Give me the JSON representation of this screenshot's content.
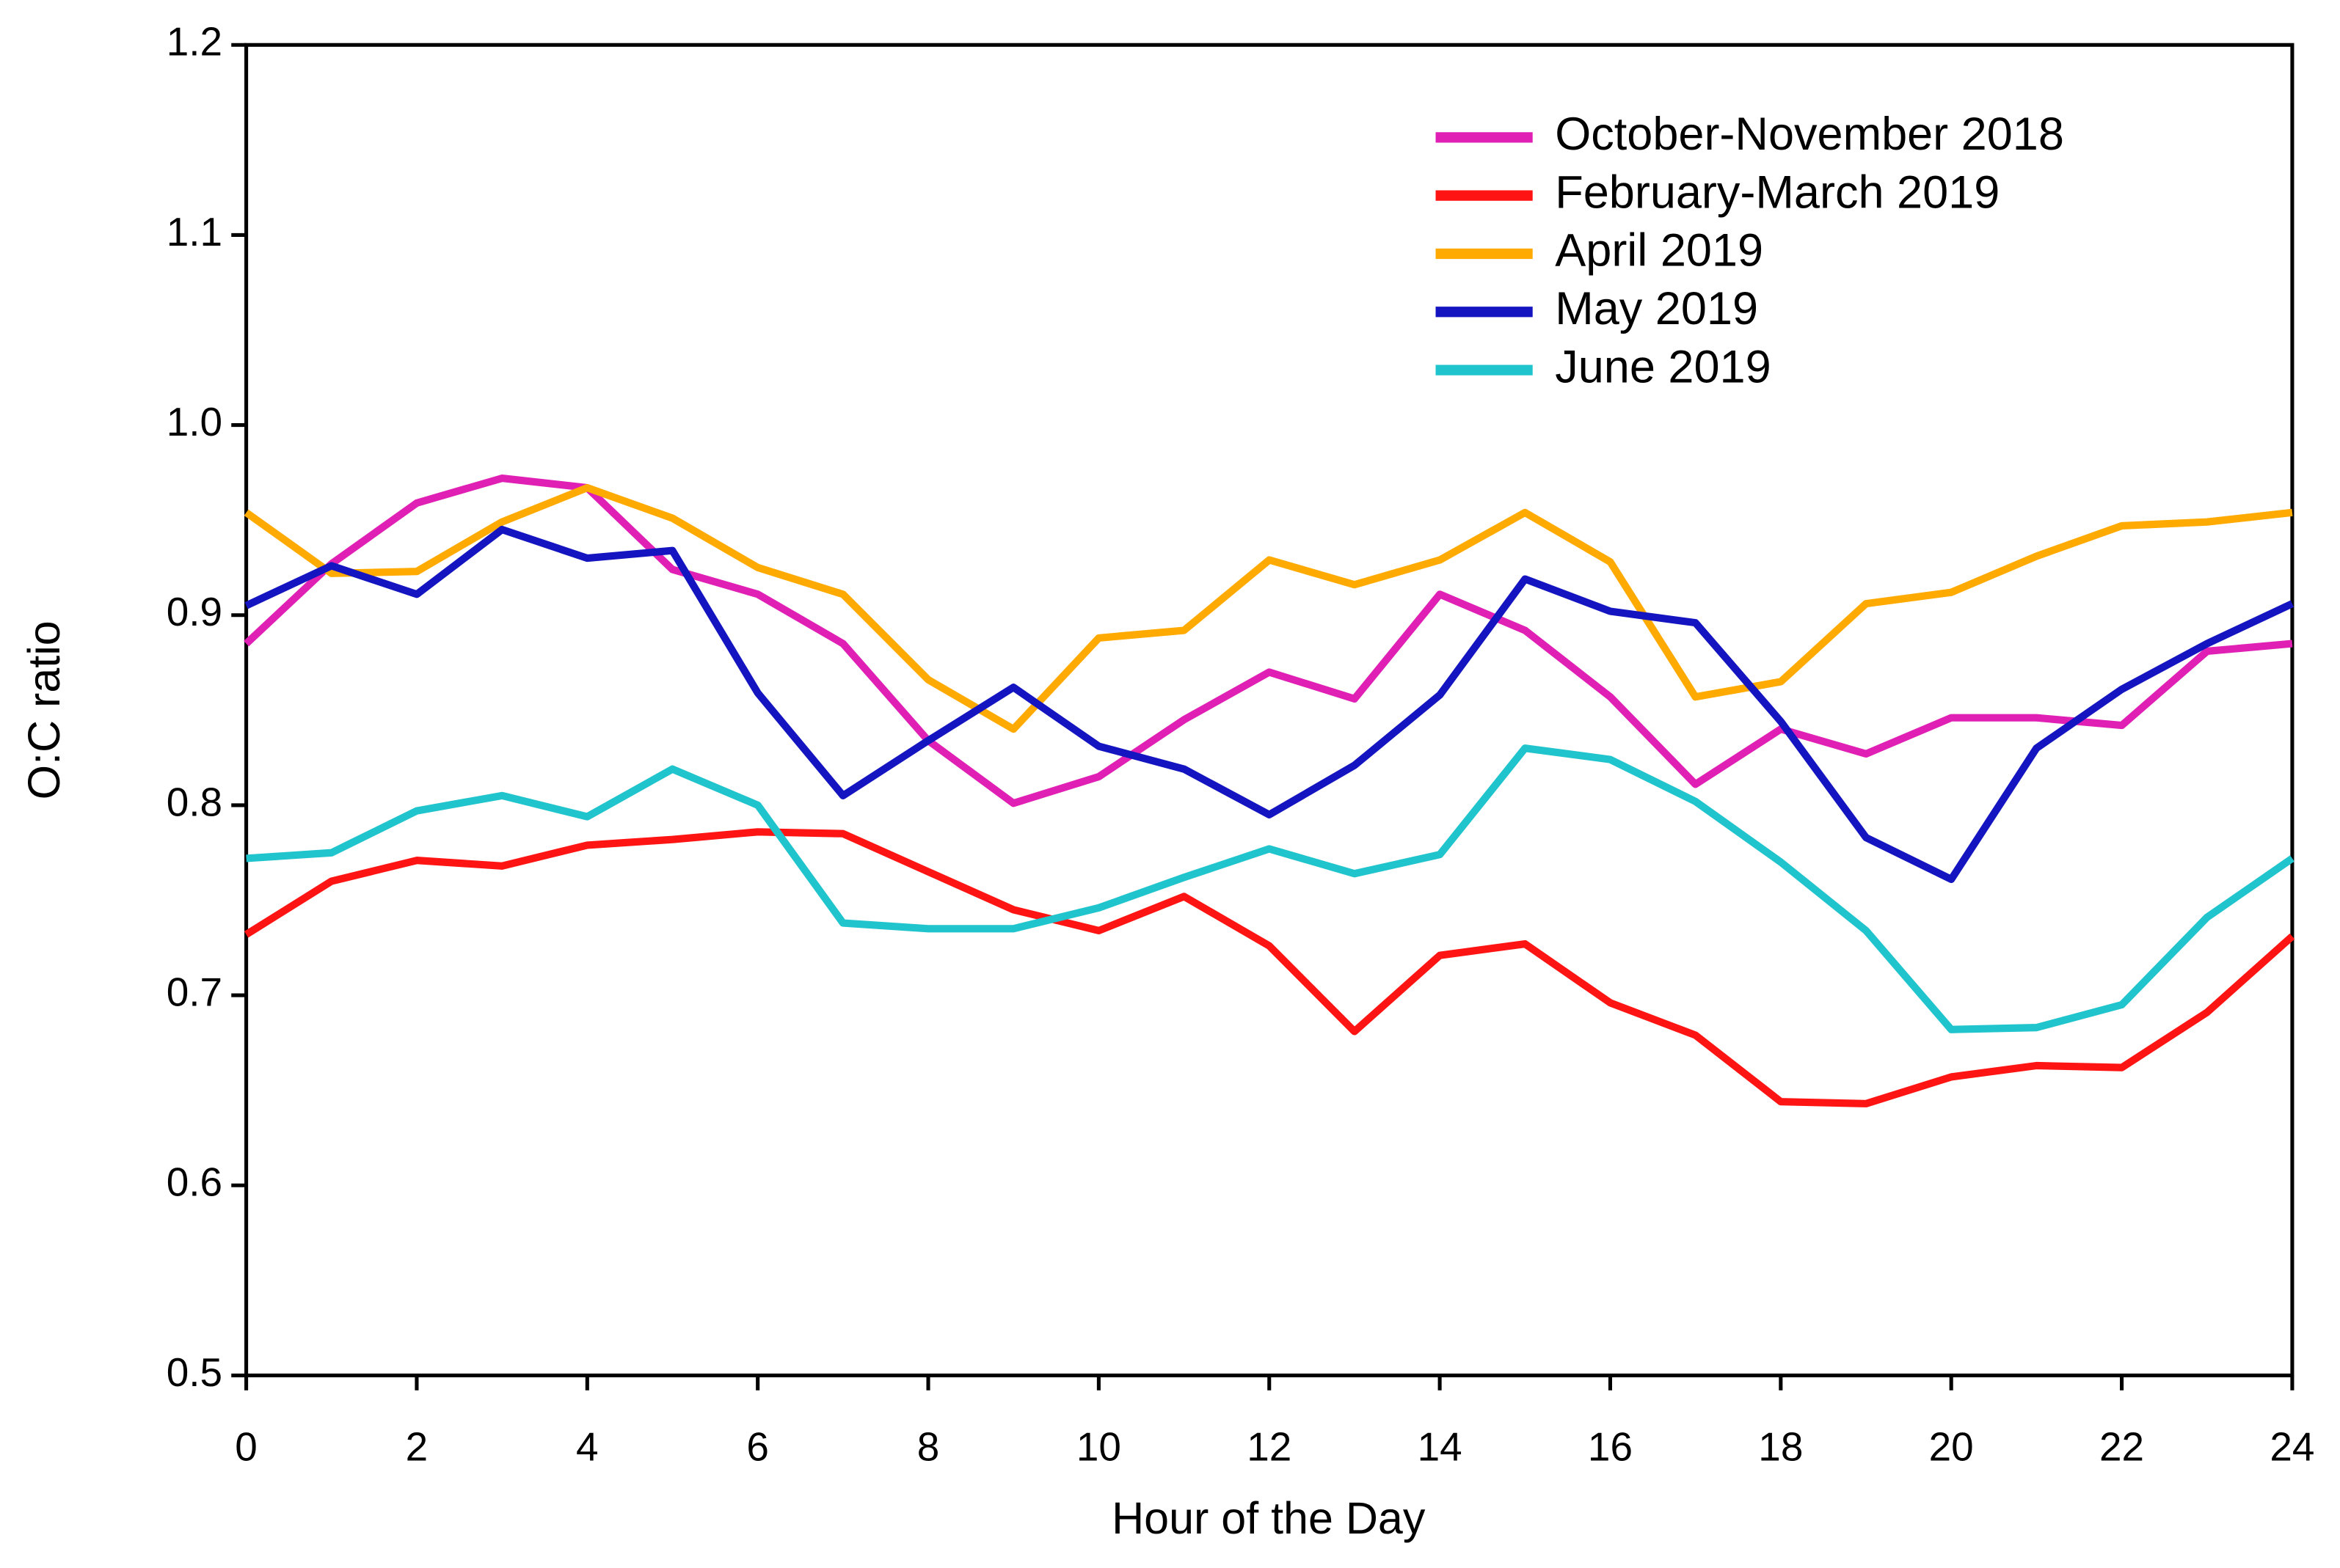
{
  "chart_data": {
    "type": "line",
    "x_label": "Hour of the Day",
    "y_label": "O:C ratio",
    "x": [
      0,
      1,
      2,
      3,
      4,
      5,
      6,
      7,
      8,
      9,
      10,
      11,
      12,
      13,
      14,
      15,
      16,
      17,
      18,
      19,
      20,
      21,
      22,
      23,
      24
    ],
    "xlim": [
      0,
      24
    ],
    "xticks": [
      0,
      2,
      4,
      6,
      8,
      10,
      12,
      14,
      16,
      18,
      20,
      22,
      24
    ],
    "ylim": [
      0.5,
      1.2
    ],
    "yticks": [
      0.5,
      0.6,
      0.7,
      0.8,
      0.9,
      {
        "value": 1,
        "label": "1.0"
      },
      1.1,
      1.2
    ],
    "grid": false,
    "legend_position": "upper-right",
    "series": [
      {
        "name": "October-November 2018",
        "color": "#e020b4",
        "values": [
          0.885,
          0.927,
          0.959,
          0.972,
          0.967,
          0.924,
          0.911,
          0.885,
          0.834,
          0.801,
          0.815,
          0.845,
          0.87,
          0.856,
          0.911,
          0.892,
          0.857,
          0.811,
          0.84,
          0.827,
          0.846,
          0.846,
          0.842,
          0.881,
          0.885
        ]
      },
      {
        "name": "February-March 2019",
        "color": "#ff1414",
        "values": [
          0.732,
          0.76,
          0.771,
          0.768,
          0.779,
          0.782,
          0.786,
          0.785,
          0.765,
          0.745,
          0.734,
          0.752,
          0.726,
          0.681,
          0.721,
          0.727,
          0.696,
          0.679,
          0.644,
          0.643,
          0.657,
          0.663,
          0.662,
          0.691,
          0.731
        ]
      },
      {
        "name": "April 2019",
        "color": "#ffaa00",
        "values": [
          0.954,
          0.922,
          0.923,
          0.949,
          0.967,
          0.951,
          0.925,
          0.911,
          0.866,
          0.84,
          0.888,
          0.892,
          0.929,
          0.916,
          0.929,
          0.954,
          0.928,
          0.857,
          0.865,
          0.906,
          0.912,
          0.931,
          0.947,
          0.949,
          0.954
        ]
      },
      {
        "name": "May 2019",
        "color": "#1414c0",
        "values": [
          0.905,
          0.926,
          0.911,
          0.945,
          0.93,
          0.934,
          0.859,
          0.805,
          0.834,
          0.862,
          0.831,
          0.819,
          0.795,
          0.821,
          0.858,
          0.919,
          0.902,
          0.896,
          0.844,
          0.783,
          0.761,
          0.83,
          0.861,
          0.885,
          0.906
        ]
      },
      {
        "name": "June 2019",
        "color": "#20c4cc",
        "values": [
          0.772,
          0.775,
          0.797,
          0.805,
          0.794,
          0.819,
          0.8,
          0.738,
          0.735,
          0.735,
          0.746,
          0.762,
          0.777,
          0.764,
          0.774,
          0.83,
          0.824,
          0.802,
          0.77,
          0.734,
          0.682,
          0.683,
          0.695,
          0.741,
          0.772
        ]
      }
    ]
  }
}
